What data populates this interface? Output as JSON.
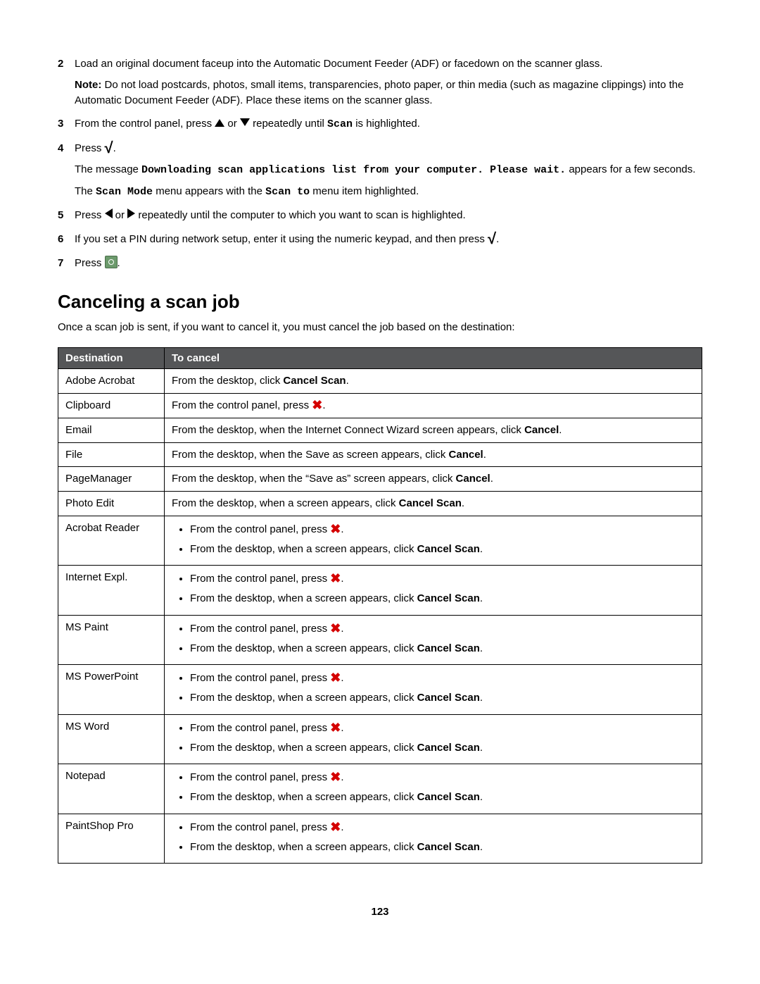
{
  "steps": [
    {
      "num": "2",
      "paras": [
        [
          {
            "t": "text",
            "v": "Load an original document faceup into the Automatic Document Feeder (ADF) or facedown on the scanner glass."
          }
        ],
        [
          {
            "t": "bold",
            "v": "Note:"
          },
          {
            "t": "text",
            "v": " Do not load postcards, photos, small items, transparencies, photo paper, or thin media (such as magazine clippings) into the Automatic Document Feeder (ADF). Place these items on the scanner glass."
          }
        ]
      ]
    },
    {
      "num": "3",
      "paras": [
        [
          {
            "t": "text",
            "v": "From the control panel, press "
          },
          {
            "t": "icon",
            "v": "up"
          },
          {
            "t": "text",
            "v": " or "
          },
          {
            "t": "icon",
            "v": "down"
          },
          {
            "t": "text",
            "v": " repeatedly until "
          },
          {
            "t": "mono",
            "v": "Scan"
          },
          {
            "t": "text",
            "v": " is highlighted."
          }
        ]
      ]
    },
    {
      "num": "4",
      "paras": [
        [
          {
            "t": "text",
            "v": "Press "
          },
          {
            "t": "icon",
            "v": "check"
          },
          {
            "t": "text",
            "v": "."
          }
        ],
        [
          {
            "t": "text",
            "v": "The message "
          },
          {
            "t": "mono",
            "v": "Downloading scan applications list from your computer. Please wait."
          },
          {
            "t": "text",
            "v": " appears for a few seconds."
          }
        ],
        [
          {
            "t": "text",
            "v": "The "
          },
          {
            "t": "mono",
            "v": "Scan Mode"
          },
          {
            "t": "text",
            "v": " menu appears with the "
          },
          {
            "t": "mono",
            "v": "Scan to"
          },
          {
            "t": "text",
            "v": " menu item highlighted."
          }
        ]
      ]
    },
    {
      "num": "5",
      "paras": [
        [
          {
            "t": "text",
            "v": "Press "
          },
          {
            "t": "icon",
            "v": "left"
          },
          {
            "t": "text",
            "v": " or "
          },
          {
            "t": "icon",
            "v": "right"
          },
          {
            "t": "text",
            "v": " repeatedly until the computer to which you want to scan is highlighted."
          }
        ]
      ]
    },
    {
      "num": "6",
      "paras": [
        [
          {
            "t": "text",
            "v": "If you set a PIN during network setup, enter it using the numeric keypad, and then press "
          },
          {
            "t": "icon",
            "v": "check"
          },
          {
            "t": "text",
            "v": "."
          }
        ]
      ]
    },
    {
      "num": "7",
      "paras": [
        [
          {
            "t": "text",
            "v": "Press "
          },
          {
            "t": "icon",
            "v": "start"
          },
          {
            "t": "text",
            "v": "."
          }
        ]
      ]
    }
  ],
  "heading": "Canceling a scan job",
  "intro": "Once a scan job is sent, if you want to cancel it, you must cancel the job based on the destination:",
  "table": {
    "headers": [
      "Destination",
      "To cancel"
    ],
    "rows": [
      {
        "dest": "Adobe Acrobat",
        "type": "line",
        "segments": [
          {
            "t": "text",
            "v": "From the desktop, click "
          },
          {
            "t": "bold",
            "v": "Cancel Scan"
          },
          {
            "t": "text",
            "v": "."
          }
        ]
      },
      {
        "dest": "Clipboard",
        "type": "line",
        "segments": [
          {
            "t": "text",
            "v": "From the control panel, press "
          },
          {
            "t": "icon",
            "v": "x"
          },
          {
            "t": "text",
            "v": "."
          }
        ]
      },
      {
        "dest": "Email",
        "type": "line",
        "segments": [
          {
            "t": "text",
            "v": "From the desktop, when the Internet Connect Wizard screen appears, click "
          },
          {
            "t": "bold",
            "v": "Cancel"
          },
          {
            "t": "text",
            "v": "."
          }
        ]
      },
      {
        "dest": "File",
        "type": "line",
        "segments": [
          {
            "t": "text",
            "v": "From the desktop, when the Save as screen appears, click "
          },
          {
            "t": "bold",
            "v": "Cancel"
          },
          {
            "t": "text",
            "v": "."
          }
        ]
      },
      {
        "dest": "PageManager",
        "type": "line",
        "segments": [
          {
            "t": "text",
            "v": "From the desktop, when the “Save as” screen appears, click "
          },
          {
            "t": "bold",
            "v": "Cancel"
          },
          {
            "t": "text",
            "v": "."
          }
        ]
      },
      {
        "dest": "Photo Edit",
        "type": "line",
        "segments": [
          {
            "t": "text",
            "v": "From the desktop, when a screen appears, click "
          },
          {
            "t": "bold",
            "v": "Cancel Scan"
          },
          {
            "t": "text",
            "v": "."
          }
        ]
      },
      {
        "dest": "Acrobat Reader",
        "type": "list",
        "items": [
          [
            {
              "t": "text",
              "v": "From the control panel, press "
            },
            {
              "t": "icon",
              "v": "x"
            },
            {
              "t": "text",
              "v": "."
            }
          ],
          [
            {
              "t": "text",
              "v": "From the desktop, when a screen appears, click "
            },
            {
              "t": "bold",
              "v": "Cancel Scan"
            },
            {
              "t": "text",
              "v": "."
            }
          ]
        ]
      },
      {
        "dest": "Internet Expl.",
        "type": "list",
        "items": [
          [
            {
              "t": "text",
              "v": "From the control panel, press "
            },
            {
              "t": "icon",
              "v": "x"
            },
            {
              "t": "text",
              "v": "."
            }
          ],
          [
            {
              "t": "text",
              "v": "From the desktop, when a screen appears, click "
            },
            {
              "t": "bold",
              "v": "Cancel Scan"
            },
            {
              "t": "text",
              "v": "."
            }
          ]
        ]
      },
      {
        "dest": "MS Paint",
        "type": "list",
        "items": [
          [
            {
              "t": "text",
              "v": "From the control panel, press "
            },
            {
              "t": "icon",
              "v": "x"
            },
            {
              "t": "text",
              "v": "."
            }
          ],
          [
            {
              "t": "text",
              "v": "From the desktop, when a screen appears, click "
            },
            {
              "t": "bold",
              "v": "Cancel Scan"
            },
            {
              "t": "text",
              "v": "."
            }
          ]
        ]
      },
      {
        "dest": "MS PowerPoint",
        "type": "list",
        "items": [
          [
            {
              "t": "text",
              "v": "From the control panel, press "
            },
            {
              "t": "icon",
              "v": "x"
            },
            {
              "t": "text",
              "v": "."
            }
          ],
          [
            {
              "t": "text",
              "v": "From the desktop, when a screen appears, click "
            },
            {
              "t": "bold",
              "v": "Cancel Scan"
            },
            {
              "t": "text",
              "v": "."
            }
          ]
        ]
      },
      {
        "dest": "MS Word",
        "type": "list",
        "items": [
          [
            {
              "t": "text",
              "v": "From the control panel, press "
            },
            {
              "t": "icon",
              "v": "x"
            },
            {
              "t": "text",
              "v": "."
            }
          ],
          [
            {
              "t": "text",
              "v": "From the desktop, when a screen appears, click "
            },
            {
              "t": "bold",
              "v": "Cancel Scan"
            },
            {
              "t": "text",
              "v": "."
            }
          ]
        ]
      },
      {
        "dest": "Notepad",
        "type": "list",
        "items": [
          [
            {
              "t": "text",
              "v": "From the control panel, press "
            },
            {
              "t": "icon",
              "v": "x"
            },
            {
              "t": "text",
              "v": "."
            }
          ],
          [
            {
              "t": "text",
              "v": "From the desktop, when a screen appears, click "
            },
            {
              "t": "bold",
              "v": "Cancel Scan"
            },
            {
              "t": "text",
              "v": "."
            }
          ]
        ]
      },
      {
        "dest": "PaintShop Pro",
        "type": "list",
        "items": [
          [
            {
              "t": "text",
              "v": "From the control panel, press "
            },
            {
              "t": "icon",
              "v": "x"
            },
            {
              "t": "text",
              "v": "."
            }
          ],
          [
            {
              "t": "text",
              "v": "From the desktop, when a screen appears, click "
            },
            {
              "t": "bold",
              "v": "Cancel Scan"
            },
            {
              "t": "text",
              "v": "."
            }
          ]
        ]
      }
    ]
  },
  "pageNumber": "123"
}
